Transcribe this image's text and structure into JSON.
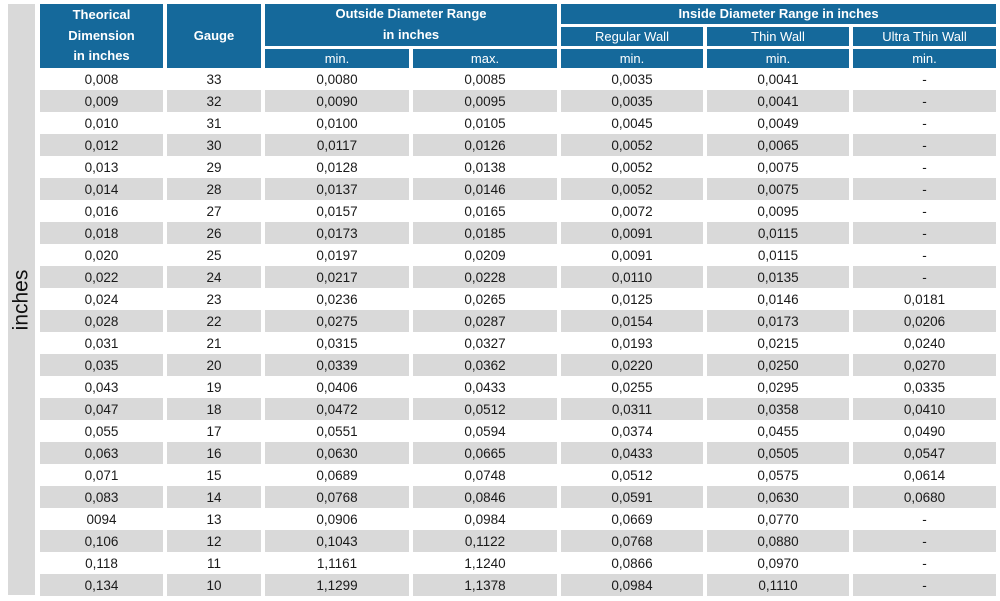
{
  "unit_label": "inches",
  "colors": {
    "header_bg": "#15699B",
    "header_text": "#FFFFFF",
    "stripe_gray": "#D9D9D9",
    "body_text": "#1A1A1A",
    "background": "#FFFFFF"
  },
  "header": {
    "col_theorical": [
      "Theorical",
      "Dimension",
      "in inches"
    ],
    "col_gauge": "Gauge",
    "outside_title": [
      "Outside Diameter Range",
      "in inches"
    ],
    "outside_min": "min.",
    "outside_max": "max.",
    "inside_title": "Inside Diameter Range in inches",
    "inside_regular": "Regular Wall",
    "inside_thin": "Thin Wall",
    "inside_ultra": "Ultra Thin Wall",
    "inside_min_regular": "min.",
    "inside_min_thin": "min.",
    "inside_min_ultra": "min."
  },
  "table": {
    "columns": [
      "Theorical Dimension in inches",
      "Gauge",
      "Outside Diameter Range min.",
      "Outside Diameter Range max.",
      "Inside Diameter Regular Wall min.",
      "Inside Diameter Thin Wall min.",
      "Inside Diameter Ultra Thin Wall min."
    ],
    "rows": [
      [
        "0,008",
        "33",
        "0,0080",
        "0,0085",
        "0,0035",
        "0,0041",
        "-"
      ],
      [
        "0,009",
        "32",
        "0,0090",
        "0,0095",
        "0,0035",
        "0,0041",
        "-"
      ],
      [
        "0,010",
        "31",
        "0,0100",
        "0,0105",
        "0,0045",
        "0,0049",
        "-"
      ],
      [
        "0,012",
        "30",
        "0,0117",
        "0,0126",
        "0,0052",
        "0,0065",
        "-"
      ],
      [
        "0,013",
        "29",
        "0,0128",
        "0,0138",
        "0,0052",
        "0,0075",
        "-"
      ],
      [
        "0,014",
        "28",
        "0,0137",
        "0,0146",
        "0,0052",
        "0,0075",
        "-"
      ],
      [
        "0,016",
        "27",
        "0,0157",
        "0,0165",
        "0,0072",
        "0,0095",
        "-"
      ],
      [
        "0,018",
        "26",
        "0,0173",
        "0,0185",
        "0,0091",
        "0,0115",
        "-"
      ],
      [
        "0,020",
        "25",
        "0,0197",
        "0,0209",
        "0,0091",
        "0,0115",
        "-"
      ],
      [
        "0,022",
        "24",
        "0,0217",
        "0,0228",
        "0,0110",
        "0,0135",
        "-"
      ],
      [
        "0,024",
        "23",
        "0,0236",
        "0,0265",
        "0,0125",
        "0,0146",
        "0,0181"
      ],
      [
        "0,028",
        "22",
        "0,0275",
        "0,0287",
        "0,0154",
        "0,0173",
        "0,0206"
      ],
      [
        "0,031",
        "21",
        "0,0315",
        "0,0327",
        "0,0193",
        "0,0215",
        "0,0240"
      ],
      [
        "0,035",
        "20",
        "0,0339",
        "0,0362",
        "0,0220",
        "0,0250",
        "0,0270"
      ],
      [
        "0,043",
        "19",
        "0,0406",
        "0,0433",
        "0,0255",
        "0,0295",
        "0,0335"
      ],
      [
        "0,047",
        "18",
        "0,0472",
        "0,0512",
        "0,0311",
        "0,0358",
        "0,0410"
      ],
      [
        "0,055",
        "17",
        "0,0551",
        "0,0594",
        "0,0374",
        "0,0455",
        "0,0490"
      ],
      [
        "0,063",
        "16",
        "0,0630",
        "0,0665",
        "0,0433",
        "0,0505",
        "0,0547"
      ],
      [
        "0,071",
        "15",
        "0,0689",
        "0,0748",
        "0,0512",
        "0,0575",
        "0,0614"
      ],
      [
        "0,083",
        "14",
        "0,0768",
        "0,0846",
        "0,0591",
        "0,0630",
        "0,0680"
      ],
      [
        "0094",
        "13",
        "0,0906",
        "0,0984",
        "0,0669",
        "0,0770",
        "-"
      ],
      [
        "0,106",
        "12",
        "0,1043",
        "0,1122",
        "0,0768",
        "0,0880",
        "-"
      ],
      [
        "0,118",
        "11",
        "1,1161",
        "1,1240",
        "0,0866",
        "0,0970",
        "-"
      ],
      [
        "0,134",
        "10",
        "1,1299",
        "1,1378",
        "0,0984",
        "0,1110",
        "-"
      ]
    ]
  }
}
